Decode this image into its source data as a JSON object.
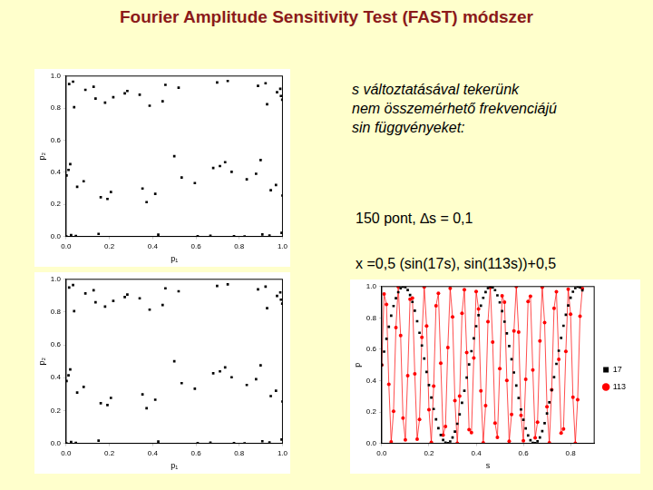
{
  "title": "Fourier Amplitude Sensitivity Test (FAST) módszer",
  "text": {
    "description": [
      "s változtatásával tekerünk",
      "nem összemérhető frekvenciájú",
      "sin függvényeket:"
    ],
    "points": "150 pont, ∆s = 0,1",
    "formula": "x =0,5 (sin(17s), sin(113s))+0,5"
  },
  "chart_data": [
    {
      "type": "scatter",
      "xlabel": "p₁",
      "ylabel": "p₂",
      "grid": false,
      "xlim": [
        0,
        1
      ],
      "ylim": [
        0,
        1
      ],
      "xticks": [
        {
          "value": 0,
          "label": "0.0"
        },
        {
          "value": 0.2,
          "label": "0.2"
        },
        {
          "value": 0.4,
          "label": "0.4"
        },
        {
          "value": 0.6,
          "label": "0.6"
        },
        {
          "value": 0.8,
          "label": "0.8"
        },
        {
          "value": 1,
          "label": "1.0"
        }
      ],
      "yticks": [
        {
          "value": 0,
          "label": "0.0"
        },
        {
          "value": 0.2,
          "label": "0.2"
        },
        {
          "value": 0.4,
          "label": "0.4"
        },
        {
          "value": 0.6,
          "label": "0.6"
        },
        {
          "value": 0.8,
          "label": "0.8"
        },
        {
          "value": 1,
          "label": "1.0"
        }
      ],
      "x": [
        0.5,
        0.996,
        0.372,
        0.037,
        0.747,
        0.899,
        0.15,
        0.191,
        0.929,
        0.698,
        0.019,
        0.426,
        1,
        0.446,
        0.014,
        0.68,
        0.94,
        0.207,
        0.136,
        0.887,
        0.765,
        0.045,
        0.353,
        0.993,
        0.52,
        0.002,
        0.608,
        0.97,
        0.271,
        0.089,
        0.835,
        0.825,
        0.081,
        0.283,
        0.975,
        0.595,
        0.001,
        0.534,
        0.99,
        0.34,
        0.051,
        0.776,
        0.878,
        0.127,
        0.218,
        0.946,
        0.667,
        0.011,
        0.459,
        0.999,
        0.412,
        0.023,
        0.711,
        0.922,
        0.18,
        0.16,
        0.907,
        0.735,
        0.032,
        0.386
      ],
      "series": [
        {
          "color": "#000000",
          "marker": "square",
          "line_style": "none",
          "values": [
            0.5,
            0.023,
            0.214,
            0.806,
            0.969,
            0.476,
            0.016,
            0.234,
            0.824,
            0.96,
            0.451,
            0.011,
            0.255,
            0.843,
            0.95,
            0.427,
            0.006,
            0.277,
            0.86,
            0.939,
            0.403,
            0.003,
            0.299,
            0.876,
            0.927,
            0.38,
            0.001,
            0.321,
            0.892,
            0.914,
            0.356,
            0,
            0.344,
            0.907,
            0.899,
            0.333,
            0,
            0.367,
            0.92,
            0.884,
            0.31,
            0.002,
            0.391,
            0.933,
            0.868,
            0.288,
            0.004,
            0.415,
            0.945,
            0.852,
            0.266,
            0.008,
            0.439,
            0.955,
            0.834,
            0.245,
            0.013,
            0.463,
            0.965,
            0.815
          ]
        }
      ]
    },
    {
      "type": "scatter",
      "xlabel": "p₁",
      "ylabel": "p₂",
      "grid": false,
      "xlim": [
        0,
        1
      ],
      "ylim": [
        0,
        1
      ],
      "xticks": [
        {
          "value": 0,
          "label": "0.0"
        },
        {
          "value": 0.2,
          "label": "0.2"
        },
        {
          "value": 0.4,
          "label": "0.4"
        },
        {
          "value": 0.6,
          "label": "0.6"
        },
        {
          "value": 0.8,
          "label": "0.8"
        },
        {
          "value": 1,
          "label": "1.0"
        }
      ],
      "yticks": [
        {
          "value": 0,
          "label": "0.0"
        },
        {
          "value": 0.2,
          "label": "0.2"
        },
        {
          "value": 0.4,
          "label": "0.4"
        },
        {
          "value": 0.6,
          "label": "0.6"
        },
        {
          "value": 0.8,
          "label": "0.8"
        },
        {
          "value": 1,
          "label": "1.0"
        }
      ],
      "x": [
        0.5,
        0.996,
        0.372,
        0.037,
        0.747,
        0.899,
        0.15,
        0.191,
        0.929,
        0.698,
        0.019,
        0.426,
        1,
        0.446,
        0.014,
        0.68,
        0.94,
        0.207,
        0.136,
        0.887,
        0.765,
        0.045,
        0.353,
        0.993,
        0.52,
        0.002,
        0.608,
        0.97,
        0.271,
        0.089,
        0.835,
        0.825,
        0.081,
        0.283,
        0.975,
        0.595,
        0.001,
        0.534,
        0.99,
        0.34,
        0.051,
        0.776,
        0.878,
        0.127,
        0.218,
        0.946,
        0.667,
        0.011,
        0.459,
        0.999,
        0.412,
        0.023,
        0.711,
        0.922,
        0.18,
        0.16,
        0.907,
        0.735,
        0.032,
        0.386
      ],
      "series": [
        {
          "color": "#000000",
          "marker": "square",
          "line_style": "none",
          "values": [
            0.5,
            0.023,
            0.214,
            0.806,
            0.969,
            0.476,
            0.016,
            0.234,
            0.824,
            0.96,
            0.451,
            0.011,
            0.255,
            0.843,
            0.95,
            0.427,
            0.006,
            0.277,
            0.86,
            0.939,
            0.403,
            0.003,
            0.299,
            0.876,
            0.927,
            0.38,
            0.001,
            0.321,
            0.892,
            0.914,
            0.356,
            0,
            0.344,
            0.907,
            0.899,
            0.333,
            0,
            0.367,
            0.92,
            0.884,
            0.31,
            0.002,
            0.391,
            0.933,
            0.868,
            0.288,
            0.004,
            0.415,
            0.945,
            0.852,
            0.266,
            0.008,
            0.439,
            0.955,
            0.834,
            0.245,
            0.013,
            0.463,
            0.965,
            0.815
          ]
        }
      ]
    },
    {
      "type": "line",
      "xlabel": "s",
      "ylabel": "p",
      "grid": false,
      "legend": "right",
      "xlim": [
        0,
        0.9
      ],
      "ylim": [
        0,
        1
      ],
      "xticks": [
        {
          "value": 0,
          "label": "0.0"
        },
        {
          "value": 0.2,
          "label": "0.2"
        },
        {
          "value": 0.4,
          "label": "0.4"
        },
        {
          "value": 0.6,
          "label": "0.6"
        },
        {
          "value": 0.8,
          "label": "0.8"
        }
      ],
      "yticks": [
        {
          "value": 0,
          "label": "0.0"
        },
        {
          "value": 0.2,
          "label": "0.2"
        },
        {
          "value": 0.4,
          "label": "0.4"
        },
        {
          "value": 0.6,
          "label": "0.6"
        },
        {
          "value": 0.8,
          "label": "0.8"
        },
        {
          "value": 1,
          "label": "1.0"
        }
      ],
      "x": [
        0,
        0.01,
        0.02,
        0.03,
        0.04,
        0.05,
        0.06,
        0.07,
        0.08,
        0.09,
        0.1,
        0.11,
        0.12,
        0.13,
        0.14,
        0.15,
        0.16,
        0.17,
        0.18,
        0.19,
        0.2,
        0.21,
        0.22,
        0.23,
        0.24,
        0.25,
        0.26,
        0.27,
        0.28,
        0.29,
        0.3,
        0.31,
        0.32,
        0.33,
        0.34,
        0.35,
        0.36,
        0.37,
        0.38,
        0.39,
        0.4,
        0.41,
        0.42,
        0.43,
        0.44,
        0.45,
        0.46,
        0.47,
        0.48,
        0.49,
        0.5,
        0.51,
        0.52,
        0.53,
        0.54,
        0.55,
        0.56,
        0.57,
        0.58,
        0.59,
        0.6,
        0.61,
        0.62,
        0.63,
        0.64,
        0.65,
        0.66,
        0.67,
        0.68,
        0.69,
        0.7,
        0.71,
        0.72,
        0.73,
        0.74,
        0.75,
        0.76,
        0.77,
        0.78,
        0.79,
        0.8,
        0.81,
        0.82,
        0.83,
        0.84,
        0.85
      ],
      "series": [
        {
          "name": "17",
          "color": "#000000",
          "marker": "square",
          "line_style": "none",
          "values": [
            0.5,
            0.585,
            0.667,
            0.744,
            0.814,
            0.876,
            0.926,
            0.964,
            0.989,
            1,
            0.996,
            0.978,
            0.946,
            0.902,
            0.846,
            0.779,
            0.705,
            0.624,
            0.541,
            0.456,
            0.372,
            0.292,
            0.219,
            0.153,
            0.097,
            0.053,
            0.022,
            0.004,
            0.001,
            0.012,
            0.037,
            0.075,
            0.125,
            0.185,
            0.259,
            0.336,
            0.419,
            0.503,
            0.588,
            0.67,
            0.747,
            0.817,
            0.878,
            0.928,
            0.965,
            0.99,
            1,
            0.995,
            0.977,
            0.944,
            0.899,
            0.843,
            0.776,
            0.702,
            0.621,
            0.537,
            0.452,
            0.369,
            0.289,
            0.216,
            0.15,
            0.095,
            0.051,
            0.02,
            0.003,
            0.001,
            0.013,
            0.038,
            0.078,
            0.129,
            0.191,
            0.262,
            0.34,
            0.422,
            0.507,
            0.591,
            0.673,
            0.75,
            0.82,
            0.88,
            0.929,
            0.967,
            0.99,
            1,
            0.995,
            0.976
          ]
        },
        {
          "name": "113",
          "color": "#ff0000",
          "marker": "circle",
          "line_style": "solid",
          "values": [
            0.5,
            0.952,
            0.886,
            0.377,
            0.009,
            0.204,
            0.738,
            0.999,
            0.688,
            0.161,
            0.023,
            0.432,
            0.919,
            0.926,
            0.444,
            0.027,
            0.152,
            0.676,
            0.998,
            0.749,
            0.214,
            0.007,
            0.365,
            0.878,
            0.957,
            0.512,
            0.053,
            0.107,
            0.611,
            0.988,
            0.806,
            0.272,
            0,
            0.301,
            0.83,
            0.98,
            0.58,
            0.088,
            0.068,
            0.544,
            0.969,
            0.857,
            0.335,
            0.003,
            0.241,
            0.776,
            0.995,
            0.646,
            0.13,
            0.038,
            0.476,
            0.941,
            0.901,
            0.401,
            0.014,
            0.185,
            0.717,
            1,
            0.71,
            0.179,
            0.016,
            0.408,
            0.905,
            0.938,
            0.468,
            0.035,
            0.135,
            0.653,
            0.996,
            0.77,
            0.234,
            0.004,
            0.342,
            0.862,
            0.967,
            0.536,
            0.065,
            0.092,
            0.587,
            0.983,
            0.824,
            0.294,
            0,
            0.279,
            0.811,
            0.987
          ]
        }
      ]
    }
  ]
}
